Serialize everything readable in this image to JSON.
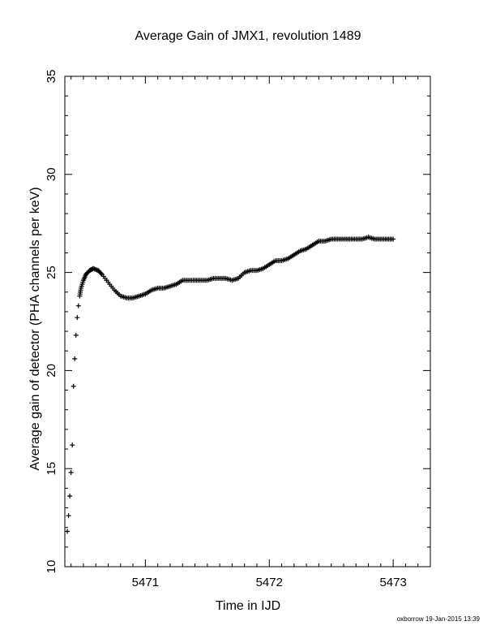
{
  "chart_data": {
    "type": "scatter",
    "title": "Average Gain of JMX1, revolution 1489",
    "xlabel": "Time in IJD",
    "ylabel": "Average gain of detector (PHA channels per keV)",
    "xlim": [
      5470.35,
      5473.3
    ],
    "ylim": [
      10,
      35
    ],
    "xticks": [
      5471,
      5472,
      5473
    ],
    "yticks": [
      10,
      15,
      20,
      25,
      30,
      35
    ],
    "marker": "plus",
    "grid": false,
    "legend": "none",
    "series": [
      {
        "x": [
          5470.37,
          5470.38,
          5470.39,
          5470.4,
          5470.41,
          5470.42,
          5470.43,
          5470.44,
          5470.45,
          5470.46,
          5470.47,
          5470.48,
          5470.5,
          5470.52,
          5470.55,
          5470.58,
          5470.62,
          5470.65,
          5470.7,
          5470.75,
          5470.8,
          5470.85,
          5470.9,
          5470.95,
          5471.0,
          5471.05,
          5471.1,
          5471.15,
          5471.2,
          5471.25,
          5471.3,
          5471.35,
          5471.4,
          5471.45,
          5471.5,
          5471.55,
          5471.6,
          5471.65,
          5471.7,
          5471.75,
          5471.8,
          5471.85,
          5471.9,
          5471.95,
          5472.0,
          5472.05,
          5472.1,
          5472.15,
          5472.2,
          5472.25,
          5472.3,
          5472.35,
          5472.4,
          5472.45,
          5472.5,
          5472.55,
          5472.6,
          5472.65,
          5472.7,
          5472.75,
          5472.8,
          5472.85,
          5472.9,
          5472.95,
          5473.0
        ],
        "y": [
          11.8,
          12.6,
          13.6,
          14.8,
          16.2,
          19.2,
          20.6,
          21.8,
          22.7,
          23.3,
          23.8,
          24.2,
          24.6,
          24.9,
          25.1,
          25.2,
          25.1,
          24.9,
          24.5,
          24.1,
          23.8,
          23.7,
          23.7,
          23.8,
          23.9,
          24.1,
          24.2,
          24.2,
          24.3,
          24.4,
          24.6,
          24.6,
          24.6,
          24.6,
          24.6,
          24.7,
          24.7,
          24.7,
          24.6,
          24.7,
          25.0,
          25.1,
          25.1,
          25.2,
          25.4,
          25.6,
          25.6,
          25.7,
          25.9,
          26.1,
          26.2,
          26.4,
          26.6,
          26.6,
          26.7,
          26.7,
          26.7,
          26.7,
          26.7,
          26.7,
          26.8,
          26.7,
          26.7,
          26.7,
          26.7
        ]
      }
    ]
  },
  "footer": "oxborrow 19-Jan-2015 13:39"
}
